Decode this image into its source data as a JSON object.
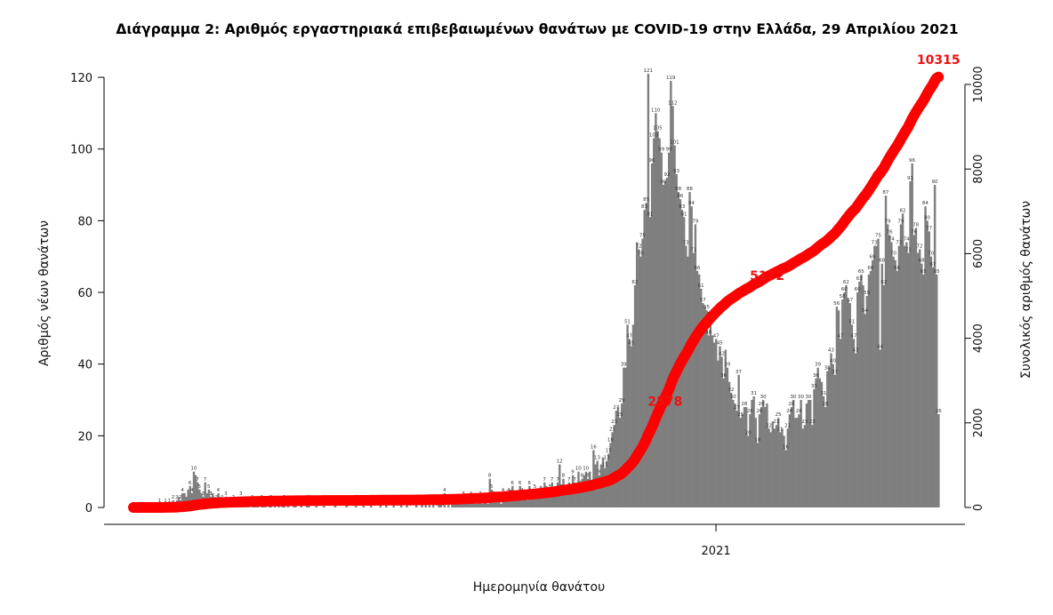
{
  "chart_data": {
    "type": "bar+line",
    "title": "Διάγραμμα 2: Αριθμός εργαστηριακά επιβεβαιωμένων θανάτων με COVID-19 στην Ελλάδα, 29 Απριλίου 2021",
    "xlabel": "Ημερομηνία θανάτου",
    "ylabel_left": "Αριθμός νέων θανάτων",
    "ylabel_right": "Συνολικός αριθμός θανάτων",
    "x_range": [
      "2020-02-27",
      "2021-04-29"
    ],
    "x_ticks": [
      {
        "date": "2021-01-01",
        "label": "2021"
      }
    ],
    "ylim_left": [
      0,
      120
    ],
    "yticks_left": [
      "0",
      "20",
      "40",
      "60",
      "80",
      "100",
      "120"
    ],
    "ylim_right": [
      0,
      10000
    ],
    "yticks_right": [
      "0",
      "2000",
      "4000",
      "6000",
      "8000",
      "10000"
    ],
    "grid": false,
    "colors": {
      "bars": "#7f7f7f",
      "cumulative_line": "#ff0000",
      "annotations": "#ee1111"
    },
    "series": [
      {
        "type": "bar",
        "values": [
          0,
          0,
          0,
          0,
          0,
          0,
          0,
          0,
          0,
          0,
          0,
          0,
          0,
          0,
          1,
          0,
          0,
          1,
          0,
          1,
          1,
          2,
          1,
          2,
          3,
          2,
          4,
          4,
          3,
          5,
          6,
          4,
          10,
          9,
          7,
          5,
          4,
          3,
          7,
          4,
          5,
          3,
          4,
          3,
          2,
          4,
          3,
          2,
          1,
          3,
          2,
          2,
          1,
          2,
          1,
          1,
          2,
          3,
          1,
          2,
          1,
          1,
          0,
          2,
          2,
          1,
          1,
          0,
          2,
          1,
          1,
          0,
          1,
          2,
          0,
          1,
          0,
          1,
          0,
          1,
          2,
          0,
          1,
          0,
          0,
          1,
          1,
          0,
          0,
          1,
          0,
          0,
          1,
          2,
          0,
          0,
          0,
          1,
          0,
          0,
          0,
          1,
          0,
          0,
          0,
          0,
          0,
          1,
          0,
          0,
          0,
          0,
          0,
          1,
          0,
          0,
          0,
          0,
          1,
          0,
          0,
          0,
          1,
          0,
          0,
          0,
          1,
          0,
          0,
          0,
          0,
          2,
          0,
          0,
          1,
          0,
          0,
          0,
          1,
          0,
          0,
          0,
          2,
          0,
          0,
          1,
          0,
          0,
          0,
          0,
          1,
          0,
          0,
          1,
          0,
          2,
          0,
          1,
          0,
          1,
          0,
          0,
          2,
          1,
          0,
          4,
          0,
          1,
          0,
          1,
          2,
          1,
          2,
          1,
          2,
          3,
          1,
          2,
          2,
          3,
          1,
          2,
          1,
          2,
          3,
          1,
          3,
          2,
          1,
          8,
          5,
          3,
          3,
          2,
          2,
          1,
          4,
          3,
          2,
          4,
          5,
          6,
          3,
          2,
          3,
          6,
          4,
          5,
          3,
          2,
          6,
          4,
          3,
          5,
          4,
          3,
          6,
          4,
          7,
          6,
          3,
          5,
          7,
          4,
          6,
          7,
          12,
          5,
          8,
          6,
          4,
          7,
          6,
          9,
          7,
          5,
          10,
          6,
          8,
          9,
          10,
          8,
          10,
          7,
          16,
          12,
          13,
          9,
          12,
          14,
          11,
          13,
          15,
          18,
          21,
          23,
          27,
          28,
          25,
          29,
          39,
          39,
          51,
          47,
          45,
          51,
          62,
          74,
          72,
          70,
          75,
          83,
          85,
          121,
          81,
          96,
          103,
          110,
          105,
          103,
          99,
          90,
          91,
          92,
          99,
          119,
          112,
          101,
          93,
          88,
          86,
          83,
          81,
          73,
          70,
          88,
          84,
          71,
          79,
          66,
          65,
          61,
          57,
          56,
          55,
          48,
          53,
          48,
          46,
          47,
          41,
          45,
          42,
          36,
          44,
          39,
          35,
          32,
          30,
          29,
          27,
          37,
          25,
          26,
          28,
          28,
          20,
          26,
          30,
          31,
          25,
          18,
          26,
          28,
          30,
          28,
          29,
          22,
          21,
          24,
          22,
          23,
          25,
          21,
          22,
          20,
          16,
          22,
          26,
          28,
          30,
          25,
          25,
          26,
          30,
          22,
          23,
          29,
          30,
          30,
          23,
          33,
          36,
          39,
          36,
          35,
          31,
          28,
          38,
          39,
          43,
          40,
          37,
          56,
          55,
          47,
          58,
          60,
          62,
          58,
          57,
          51,
          47,
          43,
          60,
          63,
          65,
          62,
          54,
          59,
          65,
          66,
          69,
          73,
          73,
          75,
          44,
          68,
          62,
          87,
          79,
          76,
          74,
          70,
          69,
          66,
          73,
          79,
          82,
          73,
          74,
          71,
          91,
          96,
          76,
          78,
          71,
          72,
          68,
          65,
          84,
          80,
          77,
          70,
          67,
          90,
          65,
          26
        ]
      },
      {
        "type": "line",
        "axis": "right",
        "description_values": "cumulative sum of daily deaths"
      }
    ],
    "annotations": [
      {
        "label": "2578",
        "cumulative": 2578
      },
      {
        "label": "5172",
        "cumulative": 5172
      },
      {
        "label": "10315",
        "cumulative": 10315
      }
    ]
  }
}
